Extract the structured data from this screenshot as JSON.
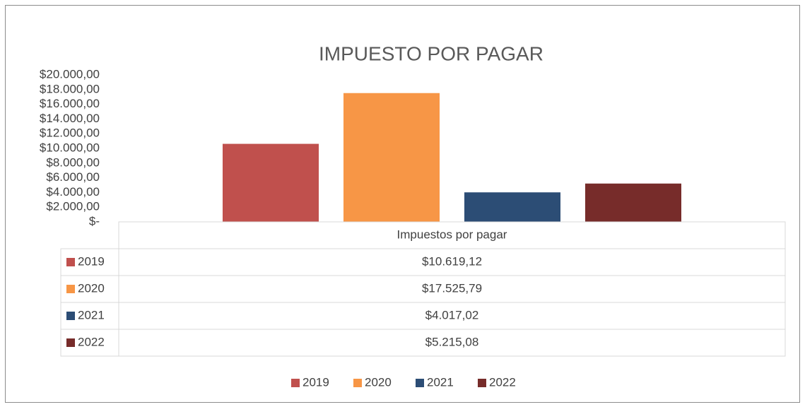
{
  "chart_data": {
    "type": "bar",
    "title": "IMPUESTO POR PAGAR",
    "categories": [
      "Impuestos por pagar"
    ],
    "series": [
      {
        "name": "2019",
        "color": "#c0504d",
        "values": [
          10619.12
        ],
        "value_labels": [
          "$10.619,12"
        ]
      },
      {
        "name": "2020",
        "color": "#f79646",
        "values": [
          17525.79
        ],
        "value_labels": [
          "$17.525,79"
        ]
      },
      {
        "name": "2021",
        "color": "#2c4d75",
        "values": [
          4017.02
        ],
        "value_labels": [
          "$4.017,02"
        ]
      },
      {
        "name": "2022",
        "color": "#772c2a",
        "values": [
          5215.08
        ],
        "value_labels": [
          "$5.215,08"
        ]
      }
    ],
    "ylim": [
      0,
      20000
    ],
    "yticks": [
      {
        "value": 0,
        "label": "$-"
      },
      {
        "value": 2000,
        "label": "$2.000,00"
      },
      {
        "value": 4000,
        "label": "$4.000,00"
      },
      {
        "value": 6000,
        "label": "$6.000,00"
      },
      {
        "value": 8000,
        "label": "$8.000,00"
      },
      {
        "value": 10000,
        "label": "$10.000,00"
      },
      {
        "value": 12000,
        "label": "$12.000,00"
      },
      {
        "value": 14000,
        "label": "$14.000,00"
      },
      {
        "value": 16000,
        "label": "$16.000,00"
      },
      {
        "value": 18000,
        "label": "$18.000,00"
      },
      {
        "value": 20000,
        "label": "$20.000,00"
      }
    ],
    "grid": false,
    "data_table": true,
    "legend": "bottom"
  }
}
